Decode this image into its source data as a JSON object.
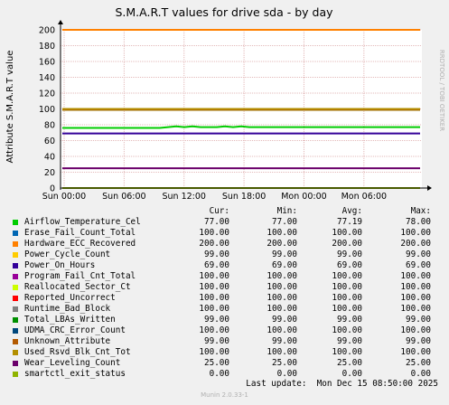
{
  "chart_data": {
    "type": "line",
    "title": "S.M.A.R.T values for drive sda - by day",
    "ylabel": "Attribute S.M.A.R.T value",
    "side_label": "RRDTOOL / TOBI OETIKER",
    "ylim": [
      0,
      200
    ],
    "yticks": [
      0,
      20,
      40,
      60,
      80,
      100,
      120,
      140,
      160,
      180,
      200
    ],
    "xticks": [
      "Sun 00:00",
      "Sun 06:00",
      "Sun 12:00",
      "Sun 18:00",
      "Mon 00:00",
      "Mon 06:00"
    ],
    "grid": true,
    "series": [
      {
        "name": "Airflow_Temperature_Cel",
        "color": "#00cc00",
        "values": [
          76,
          76,
          76,
          76,
          76,
          76,
          76,
          76,
          76,
          76,
          76,
          76,
          76,
          77,
          78,
          77,
          78,
          77,
          77,
          77,
          78,
          77,
          78,
          77,
          77,
          77,
          77,
          77,
          77,
          77,
          77,
          77,
          77,
          77,
          77,
          77,
          77,
          77,
          77,
          77,
          77,
          77,
          77,
          77,
          77
        ]
      },
      {
        "name": "Erase_Fail_Count_Total",
        "color": "#0066b3",
        "values": [
          100
        ]
      },
      {
        "name": "Hardware_ECC_Recovered",
        "color": "#ff8000",
        "values": [
          200
        ]
      },
      {
        "name": "Power_Cycle_Count",
        "color": "#ffcc00",
        "values": [
          99
        ]
      },
      {
        "name": "Power_On_Hours",
        "color": "#330099",
        "values": [
          69
        ]
      },
      {
        "name": "Program_Fail_Cnt_Total",
        "color": "#990099",
        "values": [
          100
        ]
      },
      {
        "name": "Reallocated_Sector_Ct",
        "color": "#ccff00",
        "values": [
          100
        ]
      },
      {
        "name": "Reported_Uncorrect",
        "color": "#ff0000",
        "values": [
          100
        ]
      },
      {
        "name": "Runtime_Bad_Block",
        "color": "#808080",
        "values": [
          100
        ]
      },
      {
        "name": "Total_LBAs_Written",
        "color": "#008f00",
        "values": [
          99
        ]
      },
      {
        "name": "UDMA_CRC_Error_Count",
        "color": "#00487d",
        "values": [
          100
        ]
      },
      {
        "name": "Unknown_Attribute",
        "color": "#b35a00",
        "values": [
          99
        ]
      },
      {
        "name": "Used_Rsvd_Blk_Cnt_Tot",
        "color": "#b38f00",
        "values": [
          100
        ]
      },
      {
        "name": "Wear_Leveling_Count",
        "color": "#6b006b",
        "values": [
          25
        ]
      },
      {
        "name": "smartctl_exit_status",
        "color": "#8fb300",
        "values": [
          0
        ]
      }
    ]
  },
  "legend": {
    "headers": {
      "cur": "Cur:",
      "min": "Min:",
      "avg": "Avg:",
      "max": "Max:"
    },
    "rows": [
      {
        "name": "Airflow_Temperature_Cel",
        "cur": "77.00",
        "min": "77.00",
        "avg": "77.19",
        "max": "78.00"
      },
      {
        "name": "Erase_Fail_Count_Total",
        "cur": "100.00",
        "min": "100.00",
        "avg": "100.00",
        "max": "100.00"
      },
      {
        "name": "Hardware_ECC_Recovered",
        "cur": "200.00",
        "min": "200.00",
        "avg": "200.00",
        "max": "200.00"
      },
      {
        "name": "Power_Cycle_Count",
        "cur": "99.00",
        "min": "99.00",
        "avg": "99.00",
        "max": "99.00"
      },
      {
        "name": "Power_On_Hours",
        "cur": "69.00",
        "min": "69.00",
        "avg": "69.00",
        "max": "69.00"
      },
      {
        "name": "Program_Fail_Cnt_Total",
        "cur": "100.00",
        "min": "100.00",
        "avg": "100.00",
        "max": "100.00"
      },
      {
        "name": "Reallocated_Sector_Ct",
        "cur": "100.00",
        "min": "100.00",
        "avg": "100.00",
        "max": "100.00"
      },
      {
        "name": "Reported_Uncorrect",
        "cur": "100.00",
        "min": "100.00",
        "avg": "100.00",
        "max": "100.00"
      },
      {
        "name": "Runtime_Bad_Block",
        "cur": "100.00",
        "min": "100.00",
        "avg": "100.00",
        "max": "100.00"
      },
      {
        "name": "Total_LBAs_Written",
        "cur": "99.00",
        "min": "99.00",
        "avg": "99.00",
        "max": "99.00"
      },
      {
        "name": "UDMA_CRC_Error_Count",
        "cur": "100.00",
        "min": "100.00",
        "avg": "100.00",
        "max": "100.00"
      },
      {
        "name": "Unknown_Attribute",
        "cur": "99.00",
        "min": "99.00",
        "avg": "99.00",
        "max": "99.00"
      },
      {
        "name": "Used_Rsvd_Blk_Cnt_Tot",
        "cur": "100.00",
        "min": "100.00",
        "avg": "100.00",
        "max": "100.00"
      },
      {
        "name": "Wear_Leveling_Count",
        "cur": "25.00",
        "min": "25.00",
        "avg": "25.00",
        "max": "25.00"
      },
      {
        "name": "smartctl_exit_status",
        "cur": "0.00",
        "min": "0.00",
        "avg": "0.00",
        "max": "0.00"
      }
    ]
  },
  "footer": {
    "last_update": "Last update:  Mon Dec 15 08:50:00 2025",
    "watermark": "Munin 2.0.33-1"
  }
}
